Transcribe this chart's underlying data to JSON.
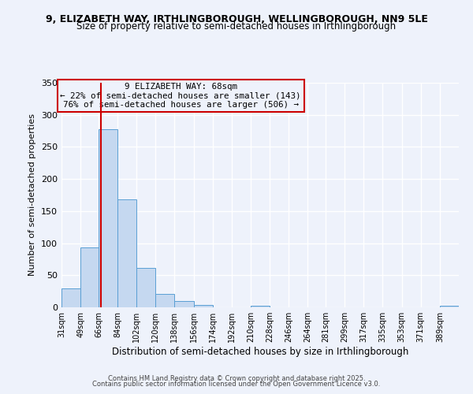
{
  "title_line1": "9, ELIZABETH WAY, IRTHLINGBOROUGH, WELLINGBOROUGH, NN9 5LE",
  "title_line2": "Size of property relative to semi-detached houses in Irthlingborough",
  "xlabel": "Distribution of semi-detached houses by size in Irthlingborough",
  "ylabel": "Number of semi-detached properties",
  "bin_labels": [
    "31sqm",
    "49sqm",
    "66sqm",
    "84sqm",
    "102sqm",
    "120sqm",
    "138sqm",
    "156sqm",
    "174sqm",
    "192sqm",
    "210sqm",
    "228sqm",
    "246sqm",
    "264sqm",
    "281sqm",
    "299sqm",
    "317sqm",
    "335sqm",
    "353sqm",
    "371sqm",
    "389sqm"
  ],
  "bin_edges": [
    31,
    49,
    66,
    84,
    102,
    120,
    138,
    156,
    174,
    192,
    210,
    228,
    246,
    264,
    281,
    299,
    317,
    335,
    353,
    371,
    389
  ],
  "bar_heights": [
    30,
    93,
    278,
    168,
    62,
    21,
    10,
    4,
    0,
    0,
    2,
    0,
    0,
    0,
    0,
    0,
    0,
    0,
    0,
    0,
    2
  ],
  "bar_color": "#c5d8f0",
  "bar_edgecolor": "#5a9fd4",
  "property_line_x": 68,
  "property_line_color": "#cc0000",
  "annotation_title": "9 ELIZABETH WAY: 68sqm",
  "annotation_line2": "← 22% of semi-detached houses are smaller (143)",
  "annotation_line3": "76% of semi-detached houses are larger (506) →",
  "annotation_box_color": "#cc0000",
  "ylim": [
    0,
    350
  ],
  "yticks": [
    0,
    50,
    100,
    150,
    200,
    250,
    300,
    350
  ],
  "background_color": "#eef2fb",
  "footer_line1": "Contains HM Land Registry data © Crown copyright and database right 2025.",
  "footer_line2": "Contains public sector information licensed under the Open Government Licence v3.0.",
  "title_fontsize": 9,
  "subtitle_fontsize": 8.5
}
